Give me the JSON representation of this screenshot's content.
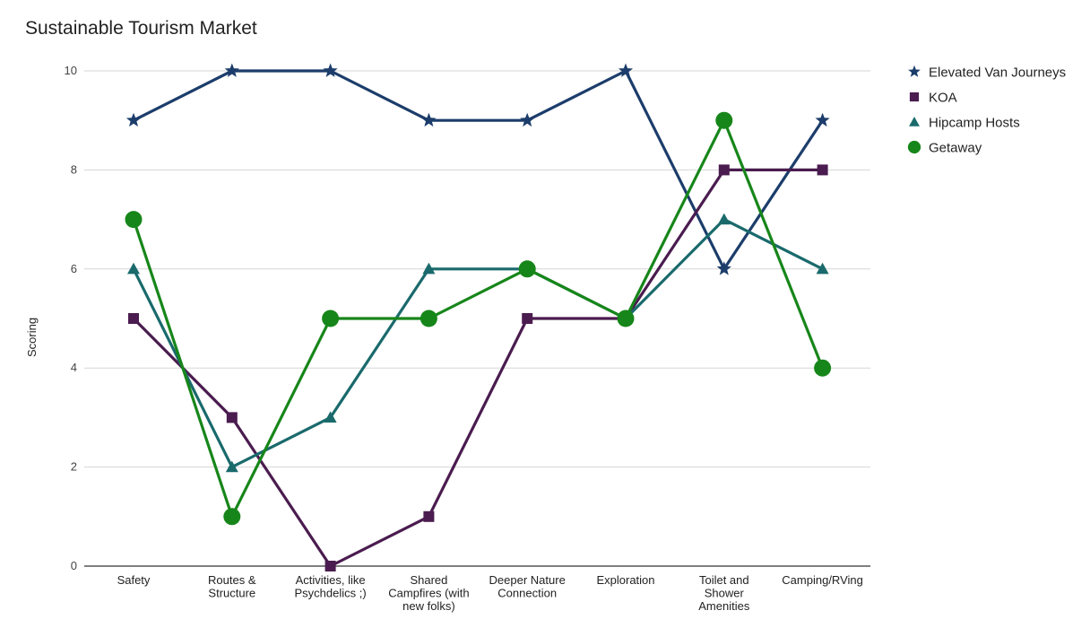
{
  "chart_data": {
    "type": "line",
    "title": "Sustainable Tourism Market",
    "xlabel": "",
    "ylabel": "Scoring",
    "ylim": [
      0,
      10
    ],
    "yticks": [
      0,
      2,
      4,
      6,
      8,
      10
    ],
    "grid": true,
    "legend_position": "right",
    "categories": [
      [
        "Safety"
      ],
      [
        "Routes &",
        "Structure"
      ],
      [
        "Activities, like",
        "Psychdelics ;)"
      ],
      [
        "Shared",
        "Campfires (with",
        "new folks)"
      ],
      [
        "Deeper Nature",
        "Connection"
      ],
      [
        "Exploration"
      ],
      [
        "Toilet and",
        "Shower",
        "Amenities"
      ],
      [
        "Camping/RVing"
      ]
    ],
    "series": [
      {
        "name": "Elevated Van Journeys",
        "color": "#1c3d6b",
        "marker": "star",
        "values": [
          9,
          10,
          10,
          9,
          9,
          10,
          6,
          9
        ]
      },
      {
        "name": "KOA",
        "color": "#4a1c4f",
        "marker": "square",
        "values": [
          5,
          3,
          0,
          1,
          5,
          5,
          8,
          8
        ]
      },
      {
        "name": "Hipcamp Hosts",
        "color": "#1a6a6c",
        "marker": "triangle",
        "values": [
          6,
          2,
          3,
          6,
          6,
          5,
          7,
          6
        ]
      },
      {
        "name": "Getaway",
        "color": "#17861a",
        "marker": "circle",
        "values": [
          7,
          1,
          5,
          5,
          6,
          5,
          9,
          4
        ]
      }
    ]
  }
}
